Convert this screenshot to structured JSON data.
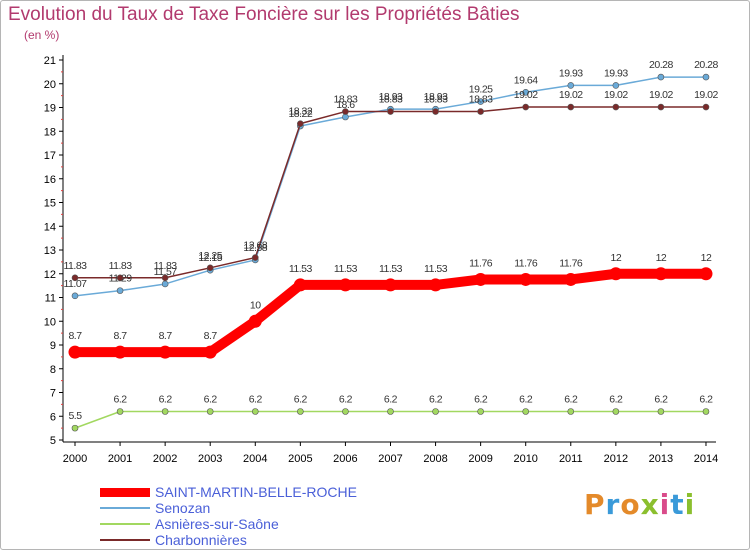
{
  "header": {
    "title": "Evolution du Taux de Taxe Foncière sur les Propriétés Bâties",
    "subtitle": "(en %)"
  },
  "logo": {
    "text": "Proxiti"
  },
  "chart_data": {
    "type": "line",
    "title": "Evolution du Taux de Taxe Foncière sur les Propriétés Bâties",
    "ylabel": "(en %)",
    "x": [
      "2000",
      "2001",
      "2002",
      "2003",
      "2004",
      "2005",
      "2006",
      "2007",
      "2008",
      "2009",
      "2010",
      "2011",
      "2012",
      "2013",
      "2014"
    ],
    "ylim": [
      5,
      21
    ],
    "yticks": [
      "5",
      "6",
      "7",
      "8",
      "9",
      "10",
      "11",
      "12",
      "13",
      "14",
      "15",
      "16",
      "17",
      "18",
      "19",
      "20",
      "21"
    ],
    "grid": false,
    "legend_position": "bottom-left",
    "series": [
      {
        "name": "SAINT-MARTIN-BELLE-ROCHE",
        "color": "#ff0000",
        "values": [
          8.7,
          8.7,
          8.7,
          8.7,
          10,
          11.53,
          11.53,
          11.53,
          11.53,
          11.76,
          11.76,
          11.76,
          12,
          12,
          12
        ],
        "labels": [
          "8.7",
          "8.7",
          "8.7",
          "8.7",
          "10",
          "11.53",
          "11.53",
          "11.53",
          "11.53",
          "11.76",
          "11.76",
          "11.76",
          "12",
          "12",
          "12"
        ]
      },
      {
        "name": "Senozan",
        "color": "#6aaad8",
        "values": [
          11.07,
          11.29,
          11.57,
          12.15,
          12.58,
          18.22,
          18.6,
          18.93,
          18.93,
          19.25,
          19.64,
          19.93,
          19.93,
          20.28,
          20.28
        ],
        "labels": [
          "11.07",
          "11.29",
          "11.57",
          "12.15",
          "12.58",
          "18.22",
          "18.6",
          "18.93",
          "18.93",
          "19.25",
          "19.64",
          "19.93",
          "19.93",
          "20.28",
          "20.28"
        ]
      },
      {
        "name": "Asnières-sur-Saône",
        "color": "#a2d860",
        "values": [
          5.5,
          6.2,
          6.2,
          6.2,
          6.2,
          6.2,
          6.2,
          6.2,
          6.2,
          6.2,
          6.2,
          6.2,
          6.2,
          6.2,
          6.2
        ],
        "labels": [
          "5.5",
          "6.2",
          "6.2",
          "6.2",
          "6.2",
          "6.2",
          "6.2",
          "6.2",
          "6.2",
          "6.2",
          "6.2",
          "6.2",
          "6.2",
          "6.2",
          "6.2"
        ]
      },
      {
        "name": "Charbonnières",
        "color": "#7a2a2a",
        "values": [
          11.83,
          11.83,
          11.83,
          12.25,
          12.68,
          18.32,
          18.83,
          18.83,
          18.83,
          18.83,
          19.02,
          19.02,
          19.02,
          19.02,
          19.02
        ],
        "labels": [
          "11.83",
          "11.83",
          "11.83",
          "12.25",
          "12.68",
          "18.32",
          "18.83",
          "18.83",
          "18.83",
          "18.83",
          "19.02",
          "19.02",
          "19.02",
          "19.02",
          "19.02"
        ]
      }
    ]
  }
}
